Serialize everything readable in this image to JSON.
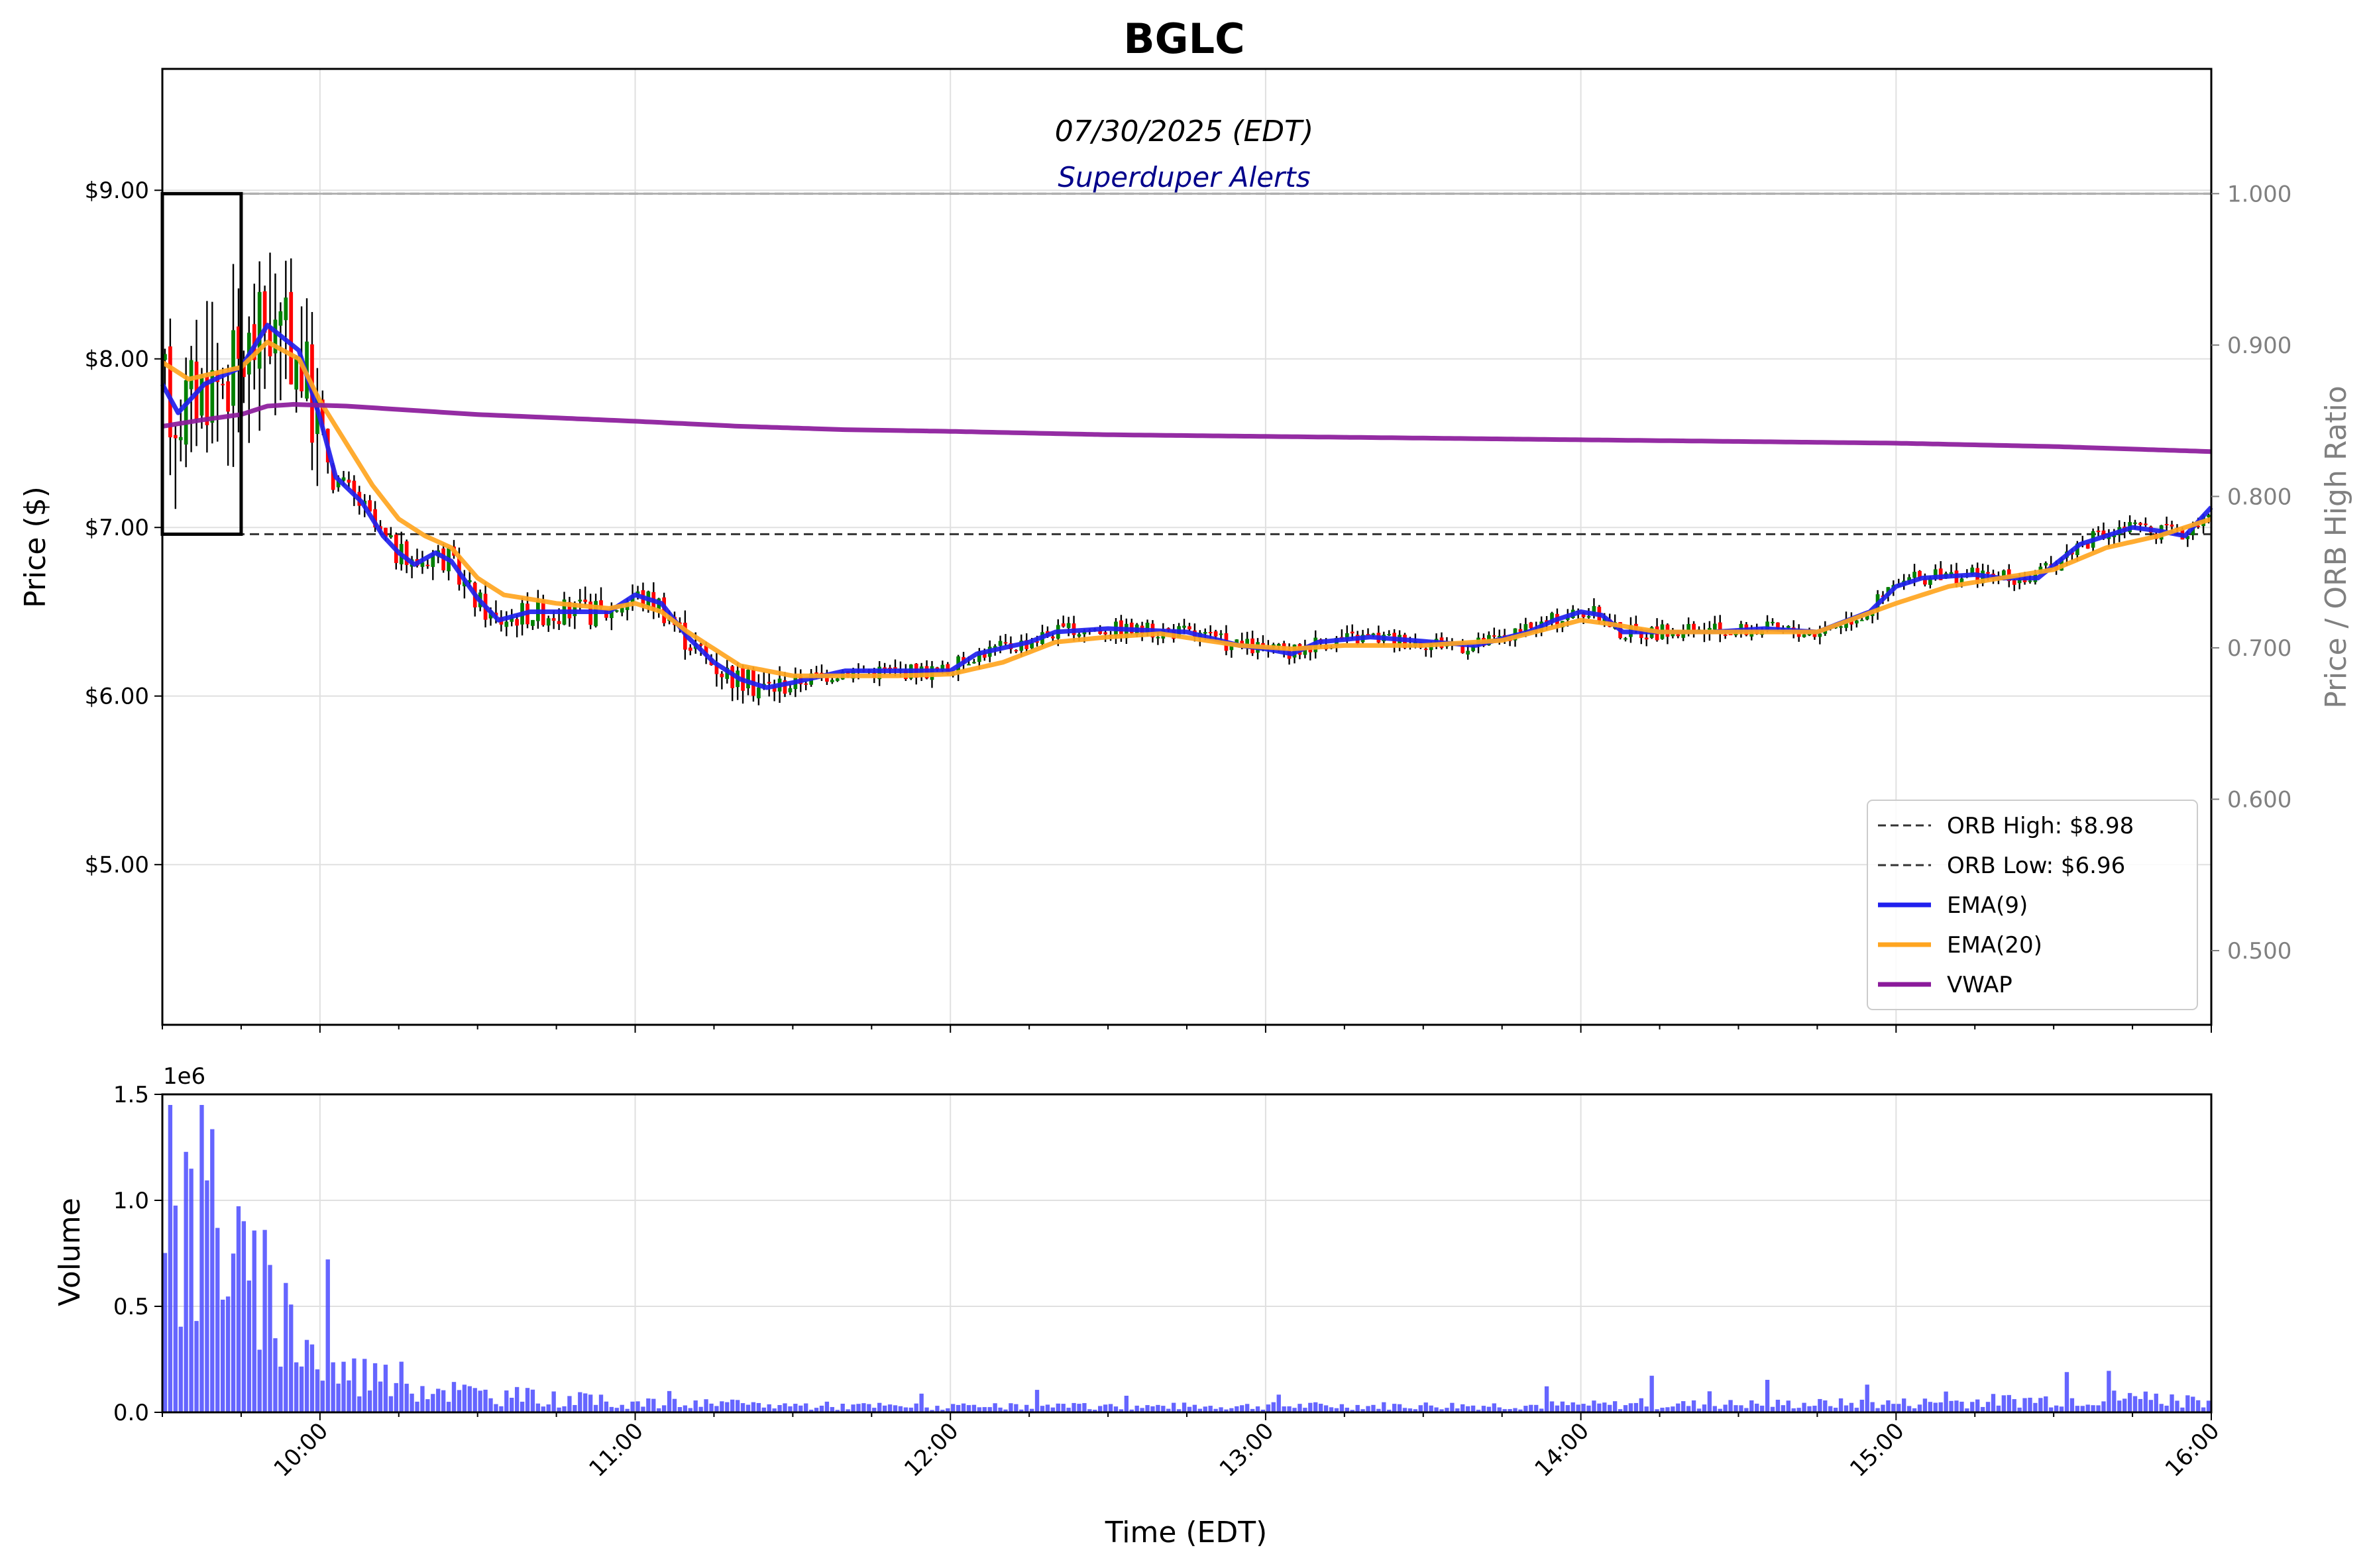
{
  "chart_data": {
    "type": "candlestick",
    "title": "BGLC",
    "date_label": "07/30/2025 (EDT)",
    "brand_label": "Superduper Alerts",
    "xlabel": "Time (EDT)",
    "ylabel": "Price ($)",
    "y2label": "Price / ORB High Ratio",
    "volume_ylabel": "Volume",
    "volume_scale_label": "1e6",
    "x_range": [
      "09:30",
      "16:00"
    ],
    "x_ticks": [
      "10:00",
      "11:00",
      "12:00",
      "13:00",
      "14:00",
      "15:00",
      "16:00"
    ],
    "y_range": [
      4.05,
      9.72
    ],
    "y_ticks": [
      "$5.00",
      "$6.00",
      "$7.00",
      "$8.00",
      "$9.00"
    ],
    "y_tick_values": [
      5,
      6,
      7,
      8,
      9
    ],
    "y2_ticks": [
      "0.500",
      "0.600",
      "0.700",
      "0.800",
      "0.900",
      "1.000"
    ],
    "y2_tick_values": [
      0.5,
      0.6,
      0.7,
      0.8,
      0.9,
      1.0
    ],
    "volume_range": [
      0,
      1.5
    ],
    "volume_ticks": [
      "0.0",
      "0.5",
      "1.0",
      "1.5"
    ],
    "volume_tick_values": [
      0,
      0.5,
      1.0,
      1.5
    ],
    "grid": true,
    "legend_position": "lower-right",
    "orb_high": 8.98,
    "orb_low": 6.96,
    "orb_window": [
      "09:30",
      "09:45"
    ],
    "colors": {
      "up": "#008000",
      "down": "#ff0000",
      "wick": "#000000",
      "ema9": "#2020ee",
      "ema20": "#ffa520",
      "vwap": "#8b1a9b",
      "volume": "#4a4aff",
      "grid": "#e0e0e0",
      "ratio_line": "#b0b0b0"
    },
    "legend": [
      {
        "label": "ORB High: $8.98",
        "style": "dashed",
        "color": "#333333"
      },
      {
        "label": "ORB Low: $6.96",
        "style": "dashed",
        "color": "#333333"
      },
      {
        "label": "EMA(9)",
        "style": "solid",
        "color": "#2020ee"
      },
      {
        "label": "EMA(20)",
        "style": "solid",
        "color": "#ffa520"
      },
      {
        "label": "VWAP",
        "style": "solid",
        "color": "#8b1a9b"
      }
    ],
    "series": [
      {
        "name": "EMA(9)",
        "points": [
          [
            "09:30",
            7.85
          ],
          [
            "09:33",
            7.68
          ],
          [
            "09:38",
            7.85
          ],
          [
            "09:45",
            7.95
          ],
          [
            "09:50",
            8.2
          ],
          [
            "09:56",
            8.05
          ],
          [
            "10:00",
            7.65
          ],
          [
            "10:03",
            7.3
          ],
          [
            "10:08",
            7.15
          ],
          [
            "10:12",
            6.95
          ],
          [
            "10:15",
            6.85
          ],
          [
            "10:18",
            6.78
          ],
          [
            "10:22",
            6.85
          ],
          [
            "10:25",
            6.8
          ],
          [
            "10:30",
            6.58
          ],
          [
            "10:34",
            6.45
          ],
          [
            "10:40",
            6.5
          ],
          [
            "10:45",
            6.5
          ],
          [
            "10:55",
            6.5
          ],
          [
            "11:00",
            6.6
          ],
          [
            "11:05",
            6.55
          ],
          [
            "11:10",
            6.35
          ],
          [
            "11:15",
            6.2
          ],
          [
            "11:20",
            6.1
          ],
          [
            "11:25",
            6.05
          ],
          [
            "11:30",
            6.08
          ],
          [
            "11:40",
            6.15
          ],
          [
            "11:50",
            6.15
          ],
          [
            "12:00",
            6.15
          ],
          [
            "12:05",
            6.25
          ],
          [
            "12:15",
            6.32
          ],
          [
            "12:20",
            6.38
          ],
          [
            "12:30",
            6.4
          ],
          [
            "12:45",
            6.38
          ],
          [
            "12:55",
            6.3
          ],
          [
            "13:00",
            6.28
          ],
          [
            "13:05",
            6.25
          ],
          [
            "13:10",
            6.32
          ],
          [
            "13:20",
            6.35
          ],
          [
            "13:40",
            6.3
          ],
          [
            "13:50",
            6.38
          ],
          [
            "13:55",
            6.45
          ],
          [
            "14:00",
            6.5
          ],
          [
            "14:04",
            6.48
          ],
          [
            "14:08",
            6.38
          ],
          [
            "14:15",
            6.38
          ],
          [
            "14:25",
            6.38
          ],
          [
            "14:35",
            6.4
          ],
          [
            "14:45",
            6.38
          ],
          [
            "14:55",
            6.5
          ],
          [
            "15:00",
            6.65
          ],
          [
            "15:05",
            6.7
          ],
          [
            "15:15",
            6.72
          ],
          [
            "15:20",
            6.7
          ],
          [
            "15:27",
            6.7
          ],
          [
            "15:35",
            6.9
          ],
          [
            "15:45",
            7.0
          ],
          [
            "15:50",
            6.98
          ],
          [
            "15:55",
            6.95
          ],
          [
            "16:00",
            7.12
          ]
        ]
      },
      {
        "name": "EMA(20)",
        "points": [
          [
            "09:30",
            7.98
          ],
          [
            "09:35",
            7.88
          ],
          [
            "09:45",
            7.95
          ],
          [
            "09:50",
            8.1
          ],
          [
            "09:56",
            8.0
          ],
          [
            "10:00",
            7.75
          ],
          [
            "10:05",
            7.5
          ],
          [
            "10:10",
            7.25
          ],
          [
            "10:15",
            7.05
          ],
          [
            "10:20",
            6.95
          ],
          [
            "10:25",
            6.88
          ],
          [
            "10:30",
            6.7
          ],
          [
            "10:35",
            6.6
          ],
          [
            "10:45",
            6.55
          ],
          [
            "10:55",
            6.52
          ],
          [
            "11:00",
            6.55
          ],
          [
            "11:05",
            6.5
          ],
          [
            "11:10",
            6.38
          ],
          [
            "11:20",
            6.18
          ],
          [
            "11:30",
            6.12
          ],
          [
            "11:40",
            6.12
          ],
          [
            "11:50",
            6.12
          ],
          [
            "12:00",
            6.13
          ],
          [
            "12:10",
            6.2
          ],
          [
            "12:20",
            6.32
          ],
          [
            "12:30",
            6.35
          ],
          [
            "12:40",
            6.37
          ],
          [
            "12:55",
            6.3
          ],
          [
            "13:05",
            6.28
          ],
          [
            "13:15",
            6.3
          ],
          [
            "13:30",
            6.3
          ],
          [
            "13:45",
            6.33
          ],
          [
            "14:00",
            6.45
          ],
          [
            "14:05",
            6.43
          ],
          [
            "14:15",
            6.38
          ],
          [
            "14:30",
            6.38
          ],
          [
            "14:45",
            6.38
          ],
          [
            "15:00",
            6.55
          ],
          [
            "15:10",
            6.65
          ],
          [
            "15:20",
            6.7
          ],
          [
            "15:30",
            6.75
          ],
          [
            "15:40",
            6.88
          ],
          [
            "15:50",
            6.95
          ],
          [
            "16:00",
            7.05
          ]
        ]
      },
      {
        "name": "VWAP",
        "points": [
          [
            "09:30",
            7.6
          ],
          [
            "09:38",
            7.64
          ],
          [
            "09:45",
            7.67
          ],
          [
            "09:50",
            7.72
          ],
          [
            "09:55",
            7.73
          ],
          [
            "10:05",
            7.72
          ],
          [
            "10:15",
            7.7
          ],
          [
            "10:30",
            7.67
          ],
          [
            "11:00",
            7.63
          ],
          [
            "11:20",
            7.6
          ],
          [
            "11:40",
            7.58
          ],
          [
            "12:00",
            7.57
          ],
          [
            "12:30",
            7.55
          ],
          [
            "13:00",
            7.54
          ],
          [
            "13:30",
            7.53
          ],
          [
            "14:00",
            7.52
          ],
          [
            "14:30",
            7.51
          ],
          [
            "15:00",
            7.5
          ],
          [
            "15:30",
            7.48
          ],
          [
            "16:00",
            7.45
          ]
        ]
      }
    ],
    "volume_profile": [
      [
        0,
        1.5
      ],
      [
        5,
        1.0
      ],
      [
        10,
        1.3
      ],
      [
        15,
        0.7
      ],
      [
        25,
        0.5
      ],
      [
        30,
        0.25
      ],
      [
        60,
        0.1
      ],
      [
        90,
        0.05
      ],
      [
        150,
        0.03
      ],
      [
        270,
        0.04
      ],
      [
        330,
        0.05
      ],
      [
        370,
        0.08
      ],
      [
        390,
        0.07
      ]
    ]
  }
}
